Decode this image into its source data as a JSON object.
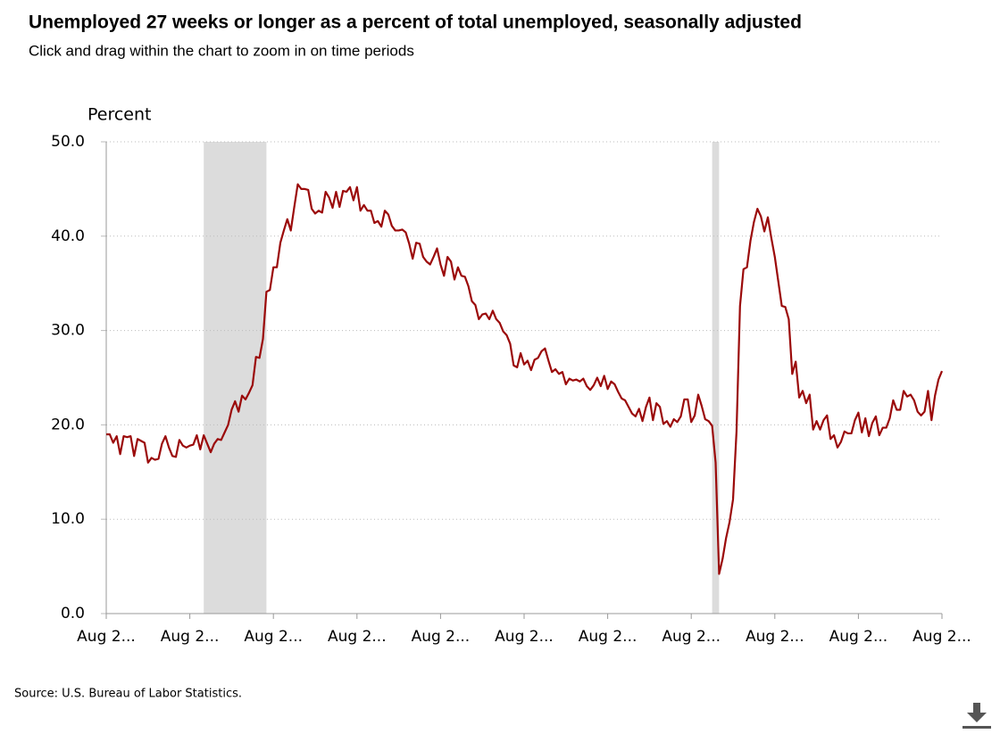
{
  "chart_data": {
    "type": "line",
    "title": "Unemployed 27 weeks or longer as a percent of total unemployed, seasonally adjusted",
    "subtitle": "Click and drag within the chart to zoom in on time periods",
    "y_label": "Percent",
    "source": "Source: U.S. Bureau of Labor Statistics.",
    "color": "#9b0a0a",
    "recession_color": "#dcdcdc",
    "recessions": [
      [
        28,
        46
      ],
      [
        174,
        176
      ]
    ],
    "grid": true,
    "ylim": [
      0,
      50
    ],
    "yticks": [
      {
        "value": 0,
        "label": "0.0"
      },
      {
        "value": 10,
        "label": "10.0"
      },
      {
        "value": 20,
        "label": "20.0"
      },
      {
        "value": 30,
        "label": "30.0"
      },
      {
        "value": 40,
        "label": "40.0"
      },
      {
        "value": 50,
        "label": "50.0"
      }
    ],
    "categories": [
      "Aug 2...",
      null,
      null,
      null,
      null,
      null,
      null,
      null,
      null,
      null,
      null,
      null,
      null,
      null,
      null,
      null,
      null,
      null,
      null,
      null,
      null,
      null,
      null,
      null,
      "Aug 2...",
      null,
      null,
      null,
      null,
      null,
      null,
      null,
      null,
      null,
      null,
      null,
      null,
      null,
      null,
      null,
      null,
      null,
      null,
      null,
      null,
      null,
      null,
      null,
      "Aug 2...",
      null,
      null,
      null,
      null,
      null,
      null,
      null,
      null,
      null,
      null,
      null,
      null,
      null,
      null,
      null,
      null,
      null,
      null,
      null,
      null,
      null,
      null,
      null,
      "Aug 2...",
      null,
      null,
      null,
      null,
      null,
      null,
      null,
      null,
      null,
      null,
      null,
      null,
      null,
      null,
      null,
      null,
      null,
      null,
      null,
      null,
      null,
      null,
      null,
      "Aug 2...",
      null,
      null,
      null,
      null,
      null,
      null,
      null,
      null,
      null,
      null,
      null,
      null,
      null,
      null,
      null,
      null,
      null,
      null,
      null,
      null,
      null,
      null,
      null,
      "Aug 2...",
      null,
      null,
      null,
      null,
      null,
      null,
      null,
      null,
      null,
      null,
      null,
      null,
      null,
      null,
      null,
      null,
      null,
      null,
      null,
      null,
      null,
      null,
      null,
      "Aug 2...",
      null,
      null,
      null,
      null,
      null,
      null,
      null,
      null,
      null,
      null,
      null,
      null,
      null,
      null,
      null,
      null,
      null,
      null,
      null,
      null,
      null,
      null,
      null,
      "Aug 2...",
      null,
      null,
      null,
      null,
      null,
      null,
      null,
      null,
      null,
      null,
      null,
      null,
      null,
      null,
      null,
      null,
      null,
      null,
      null,
      null,
      null,
      null,
      null,
      "Aug 2...",
      null,
      null,
      null,
      null,
      null,
      null,
      null,
      null,
      null,
      null,
      null,
      null,
      null,
      null,
      null,
      null,
      null,
      null,
      null,
      null,
      null,
      null,
      null,
      "Aug 2...",
      null,
      null,
      null,
      null,
      null,
      null,
      null,
      null,
      null,
      null,
      null,
      null,
      null,
      null,
      null,
      null,
      null,
      null,
      null,
      null,
      null,
      null,
      null,
      "Aug 2..."
    ],
    "values": [
      19.0,
      19.0,
      18.1,
      18.8,
      16.9,
      18.8,
      18.7,
      18.8,
      16.7,
      18.5,
      18.3,
      18.1,
      16.0,
      16.5,
      16.3,
      16.4,
      18.0,
      18.8,
      17.6,
      16.7,
      16.6,
      18.4,
      17.8,
      17.6,
      17.8,
      17.9,
      18.9,
      17.4,
      18.9,
      18.0,
      17.1,
      18.0,
      18.5,
      18.4,
      19.2,
      20.0,
      21.6,
      22.5,
      21.4,
      23.1,
      22.7,
      23.4,
      24.2,
      27.2,
      27.1,
      29.1,
      34.1,
      34.3,
      36.7,
      36.7,
      39.3,
      40.6,
      41.8,
      40.6,
      43.1,
      45.5,
      45.0,
      45.0,
      44.9,
      42.9,
      42.4,
      42.7,
      42.5,
      44.7,
      44.1,
      43.0,
      44.7,
      43.1,
      44.8,
      44.7,
      45.2,
      43.8,
      45.2,
      42.7,
      43.3,
      42.7,
      42.7,
      41.4,
      41.6,
      41.0,
      42.7,
      42.3,
      41.1,
      40.6,
      40.6,
      40.7,
      40.4,
      39.2,
      37.6,
      39.3,
      39.2,
      37.8,
      37.3,
      37.0,
      37.8,
      38.7,
      37.0,
      35.8,
      37.8,
      37.3,
      35.4,
      36.7,
      35.8,
      35.7,
      34.7,
      33.1,
      32.7,
      31.2,
      31.7,
      31.8,
      31.2,
      32.1,
      31.2,
      30.8,
      29.9,
      29.5,
      28.6,
      26.3,
      26.1,
      27.6,
      26.4,
      26.8,
      25.8,
      26.9,
      27.1,
      27.8,
      28.1,
      26.8,
      25.6,
      25.9,
      25.4,
      25.6,
      24.3,
      24.9,
      24.7,
      24.8,
      24.6,
      24.9,
      24.1,
      23.7,
      24.2,
      25.0,
      24.1,
      25.2,
      23.8,
      24.6,
      24.3,
      23.5,
      22.8,
      22.6,
      21.9,
      21.2,
      20.9,
      21.7,
      20.4,
      21.9,
      22.9,
      20.5,
      22.3,
      21.9,
      20.1,
      20.4,
      19.8,
      20.6,
      20.3,
      20.9,
      22.7,
      22.7,
      20.3,
      21.0,
      23.2,
      22.0,
      20.6,
      20.4,
      19.9,
      16.0,
      4.2,
      5.8,
      8.0,
      9.7,
      12.1,
      19.3,
      32.6,
      36.5,
      36.7,
      39.5,
      41.5,
      42.9,
      42.1,
      40.5,
      42.0,
      39.8,
      37.8,
      35.2,
      32.6,
      32.5,
      31.2,
      25.4,
      26.7,
      22.9,
      23.6,
      22.3,
      23.2,
      19.5,
      20.4,
      19.5,
      20.5,
      21.0,
      18.5,
      18.9,
      17.6,
      18.2,
      19.3,
      19.1,
      19.1,
      20.5,
      21.3,
      19.2,
      20.7,
      18.8,
      20.2,
      20.9,
      18.9,
      19.7,
      19.7,
      20.7,
      22.6,
      21.6,
      21.6,
      23.6,
      23.0,
      23.2,
      22.6,
      21.4,
      21.0,
      21.4,
      23.6,
      20.5,
      23.1,
      24.8,
      25.7
    ]
  }
}
